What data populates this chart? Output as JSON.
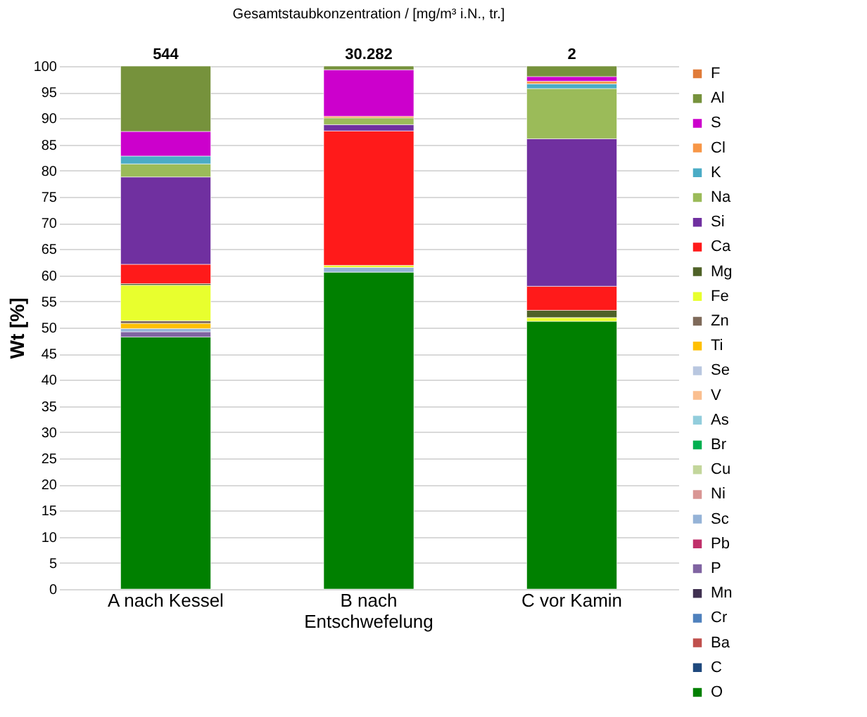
{
  "chart_data": {
    "type": "bar",
    "stacked": true,
    "title": "Gesamtstaubkonzentration / [mg/m³ i.N., tr.]",
    "ylabel": "Wt [%]",
    "categories": [
      "A nach Kessel",
      "B nach Entschwefelung",
      "C vor Kamin"
    ],
    "ylim": [
      0,
      100
    ],
    "yticks": [
      0,
      5,
      10,
      15,
      20,
      25,
      30,
      35,
      40,
      45,
      50,
      55,
      60,
      65,
      70,
      75,
      80,
      85,
      90,
      95,
      100
    ],
    "grid": "y",
    "legend": "right",
    "annotations": [
      {
        "text": "544",
        "x": "A nach Kessel",
        "y": 100
      },
      {
        "text": "30.282",
        "x": "B nach Entschwefelung",
        "y": 100
      },
      {
        "text": "2",
        "x": "C vor Kamin",
        "y": 100
      }
    ],
    "series": [
      {
        "name": "O",
        "color": "#008000",
        "values": [
          48.2,
          60.6,
          51.2
        ]
      },
      {
        "name": "C",
        "color": "#1f497d",
        "values": [
          null,
          null,
          null
        ]
      },
      {
        "name": "Ba",
        "color": "#c0504d",
        "values": [
          null,
          null,
          null
        ]
      },
      {
        "name": "Cr",
        "color": "#4f81bd",
        "values": [
          null,
          null,
          null
        ]
      },
      {
        "name": "Mn",
        "color": "#403151",
        "values": [
          null,
          null,
          null
        ]
      },
      {
        "name": "P",
        "color": "#8064a2",
        "values": [
          1.0,
          null,
          null
        ]
      },
      {
        "name": "Pb",
        "color": "#c0306a",
        "values": [
          null,
          null,
          null
        ]
      },
      {
        "name": "Sc",
        "color": "#95b3d7",
        "values": [
          0.6,
          0.9,
          null
        ]
      },
      {
        "name": "Ni",
        "color": "#d99694",
        "values": [
          null,
          null,
          null
        ]
      },
      {
        "name": "Cu",
        "color": "#c3d69b",
        "values": [
          null,
          null,
          null
        ]
      },
      {
        "name": "Br",
        "color": "#00b050",
        "values": [
          null,
          null,
          null
        ]
      },
      {
        "name": "As",
        "color": "#92cddc",
        "values": [
          null,
          null,
          null
        ]
      },
      {
        "name": "V",
        "color": "#fabf8f",
        "values": [
          null,
          null,
          null
        ]
      },
      {
        "name": "Se",
        "color": "#b9c7e0",
        "values": [
          null,
          null,
          null
        ]
      },
      {
        "name": "Ti",
        "color": "#ffc000",
        "values": [
          1.0,
          null,
          null
        ]
      },
      {
        "name": "Zn",
        "color": "#7f6a5a",
        "values": [
          0.5,
          null,
          null
        ]
      },
      {
        "name": "Fe",
        "color": "#e8ff2e",
        "values": [
          6.8,
          0.4,
          0.7
        ]
      },
      {
        "name": "Mg",
        "color": "#4f6228",
        "values": [
          0.3,
          null,
          1.4
        ]
      },
      {
        "name": "Ca",
        "color": "#ff1a1a",
        "values": [
          3.7,
          25.7,
          4.6
        ]
      },
      {
        "name": "Si",
        "color": "#7030a0",
        "values": [
          16.7,
          1.2,
          28.2
        ]
      },
      {
        "name": "Na",
        "color": "#9bbb59",
        "values": [
          2.5,
          1.3,
          9.6
        ]
      },
      {
        "name": "K",
        "color": "#4bacc6",
        "values": [
          1.5,
          null,
          0.9
        ]
      },
      {
        "name": "Cl",
        "color": "#f79646",
        "values": [
          null,
          0.3,
          0.5
        ]
      },
      {
        "name": "S",
        "color": "#cc00cc",
        "values": [
          4.7,
          8.9,
          0.9
        ]
      },
      {
        "name": "Al",
        "color": "#76923c",
        "values": [
          12.5,
          0.7,
          2.0
        ]
      },
      {
        "name": "F",
        "color": "#e07b39",
        "values": [
          null,
          null,
          null
        ]
      }
    ]
  }
}
